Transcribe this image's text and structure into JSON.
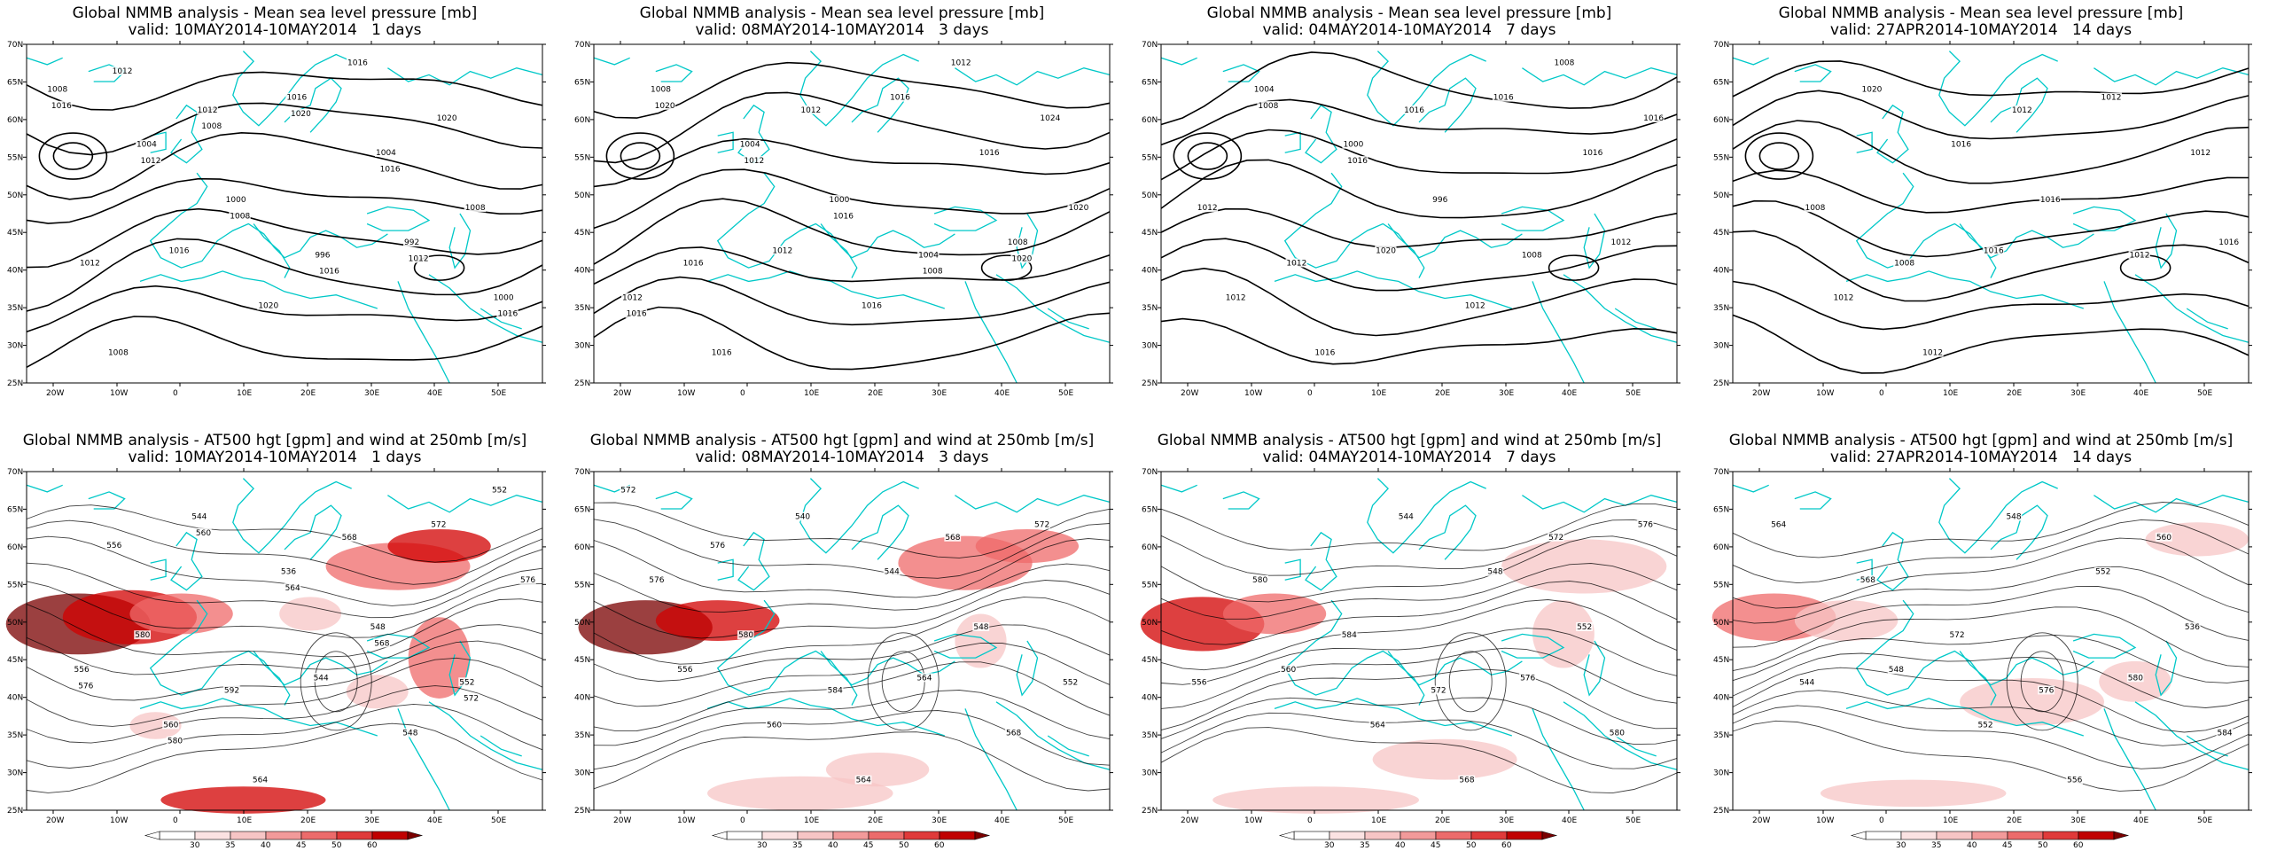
{
  "colors": {
    "coast": "#00c8c8",
    "contour": "#000000",
    "wind_light": "#f7c5c5",
    "wind_mid": "#ef6a6a",
    "wind_strong": "#d20000",
    "wind_max": "#7a0000"
  },
  "axis": {
    "lat_labels": [
      "70N",
      "65N",
      "60N",
      "55N",
      "50N",
      "45N",
      "40N",
      "35N",
      "30N",
      "25N"
    ],
    "lon_labels": [
      "20W",
      "10W",
      "0",
      "10E",
      "20E",
      "30E",
      "40E",
      "50E"
    ]
  },
  "panels": [
    {
      "title": "Global NMMB analysis - Mean sea level pressure [mb]",
      "valid": "valid: 10MAY2014-10MAY2014   1 days",
      "contour_labels": [
        "1008",
        "1004",
        "1000",
        "996",
        "992",
        "1000",
        "1008",
        "1012",
        "1016",
        "1004",
        "1008",
        "1012",
        "1016",
        "1020",
        "1016",
        "1020",
        "1016",
        "1012",
        "1008",
        "1016",
        "1012",
        "1016",
        "1012",
        "1008",
        "1020",
        "1016"
      ]
    },
    {
      "title": "Global NMMB analysis - Mean sea level pressure [mb]",
      "valid": "valid: 08MAY2014-10MAY2014   3 days",
      "contour_labels": [
        "1008",
        "1004",
        "1000",
        "1004",
        "1008",
        "1012",
        "1016",
        "1012",
        "1016",
        "1016",
        "1020",
        "1016",
        "1012",
        "1016",
        "1012",
        "1024",
        "1020",
        "1012",
        "1016",
        "1008",
        "1020",
        "1016"
      ]
    },
    {
      "title": "Global NMMB analysis - Mean sea level pressure [mb]",
      "valid": "valid: 04MAY2014-10MAY2014   7 days",
      "contour_labels": [
        "1004",
        "1000",
        "996",
        "1008",
        "1012",
        "1012",
        "1016",
        "1016",
        "1016",
        "1016",
        "1012",
        "1012",
        "1020",
        "1012",
        "1008",
        "1016",
        "1008",
        "1016"
      ]
    },
    {
      "title": "Global NMMB analysis - Mean sea level pressure [mb]",
      "valid": "valid: 27APR2014-10MAY2014   14 days",
      "contour_labels": [
        "1020",
        "1016",
        "1016",
        "1012",
        "1016",
        "1012",
        "1012",
        "1012",
        "1012",
        "1012",
        "1008",
        "1008",
        "1016"
      ]
    },
    {
      "title": "Global NMMB analysis - AT500 hgt [gpm] and wind at 250mb [m/s]",
      "valid": "valid: 10MAY2014-10MAY2014   1 days",
      "contour_labels": [
        "544",
        "536",
        "548",
        "552",
        "556",
        "560",
        "564",
        "568",
        "572",
        "576",
        "580",
        "592",
        "544",
        "548",
        "552",
        "556",
        "560",
        "564",
        "568",
        "572",
        "576",
        "580"
      ]
    },
    {
      "title": "Global NMMB analysis - AT500 hgt [gpm] and wind at 250mb [m/s]",
      "valid": "valid: 08MAY2014-10MAY2014   3 days",
      "contour_labels": [
        "540",
        "544",
        "548",
        "552",
        "556",
        "560",
        "564",
        "568",
        "572",
        "576",
        "580",
        "584",
        "564",
        "568",
        "572",
        "576"
      ]
    },
    {
      "title": "Global NMMB analysis - AT500 hgt [gpm] and wind at 250mb [m/s]",
      "valid": "valid: 04MAY2014-10MAY2014   7 days",
      "contour_labels": [
        "544",
        "548",
        "552",
        "556",
        "560",
        "564",
        "568",
        "572",
        "576",
        "580",
        "584",
        "572",
        "576",
        "580"
      ]
    },
    {
      "title": "Global NMMB analysis - AT500 hgt [gpm] and wind at 250mb [m/s]",
      "valid": "valid: 27APR2014-10MAY2014   14 days",
      "contour_labels": [
        "548",
        "552",
        "536",
        "544",
        "548",
        "552",
        "556",
        "560",
        "564",
        "568",
        "572",
        "576",
        "580",
        "584"
      ]
    }
  ],
  "colorbar": {
    "ticks": [
      "30",
      "35",
      "40",
      "45",
      "50",
      "60"
    ]
  }
}
